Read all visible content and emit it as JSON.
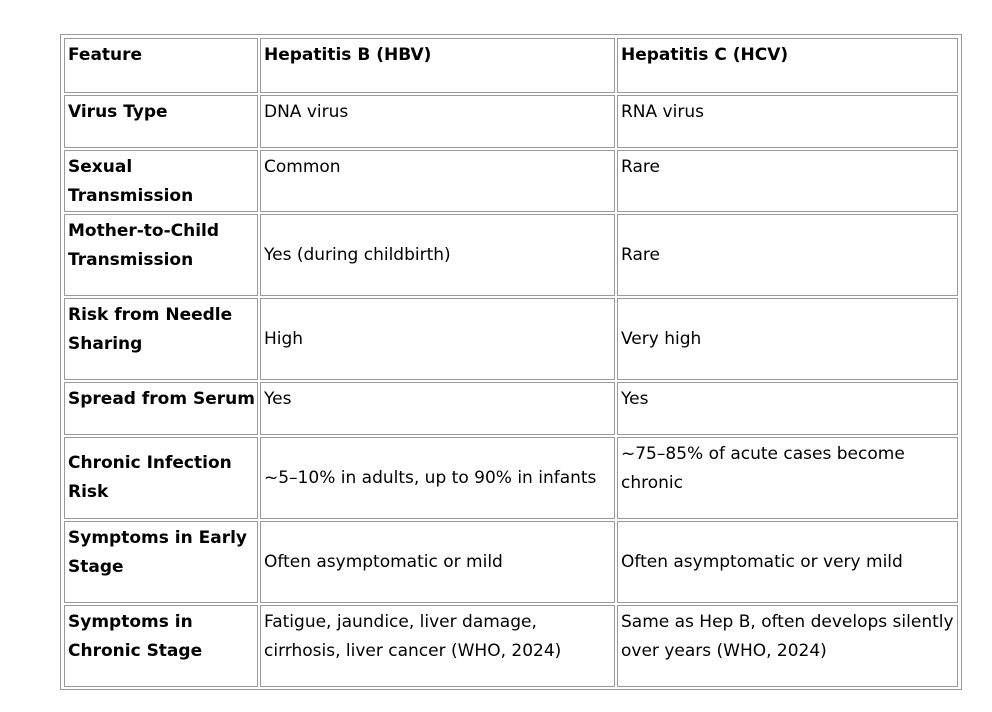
{
  "table": {
    "headers": [
      "Feature",
      "Hepatitis B (HBV)",
      "Hepatitis C (HCV)"
    ],
    "rows": [
      {
        "feature": "Virus Type",
        "hbv": "DNA virus",
        "hcv": "RNA virus"
      },
      {
        "feature": "Sexual Transmission",
        "hbv": "Common",
        "hcv": "Rare"
      },
      {
        "feature": "Mother-to-Child Transmission",
        "hbv": "Yes (during childbirth)",
        "hcv": "Rare"
      },
      {
        "feature": "Risk from Needle Sharing",
        "hbv": "High",
        "hcv": "Very high"
      },
      {
        "feature": "Spread from Serum",
        "hbv": "Yes",
        "hcv": "Yes"
      },
      {
        "feature": "Chronic Infection Risk",
        "hbv": "~5–10% in adults, up to 90% in infants",
        "hcv": "~75–85% of acute cases become chronic"
      },
      {
        "feature": "Symptoms in Early Stage",
        "hbv": "Often asymptomatic or mild",
        "hcv": "Often asymptomatic or very mild"
      },
      {
        "feature": "Symptoms in Chronic Stage",
        "hbv": "Fatigue, jaundice, liver damage, cirrhosis, liver cancer (WHO, 2024)",
        "hcv": "Same as Hep B, often develops silently over years (WHO, 2024)"
      }
    ]
  }
}
